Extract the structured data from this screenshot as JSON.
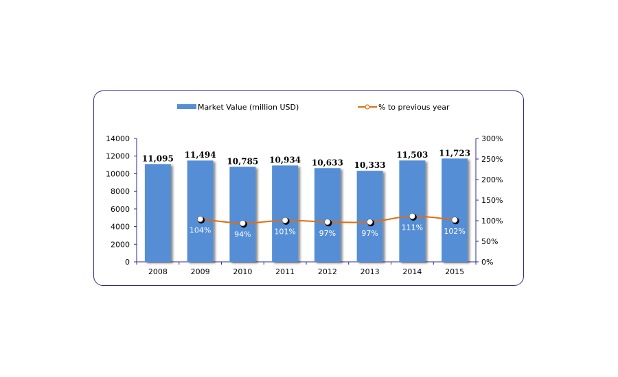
{
  "chart_data": {
    "type": "bar",
    "categories": [
      "2008",
      "2009",
      "2010",
      "2011",
      "2012",
      "2013",
      "2014",
      "2015"
    ],
    "series": [
      {
        "name": "Market Value (million USD)",
        "type": "bar",
        "axis": "left",
        "values": [
          11095,
          11494,
          10785,
          10934,
          10633,
          10333,
          11503,
          11723
        ],
        "labels": [
          "11,095",
          "11,494",
          "10,785",
          "10,934",
          "10,633",
          "10,333",
          "11,503",
          "11,723"
        ]
      },
      {
        "name": "% to previous year",
        "type": "line",
        "axis": "right",
        "values": [
          null,
          104,
          94,
          101,
          97,
          97,
          111,
          102
        ],
        "labels": [
          "",
          "104%",
          "94%",
          "101%",
          "97%",
          "97%",
          "111%",
          "102%"
        ]
      }
    ],
    "y_left": {
      "lim": [
        0,
        14000
      ],
      "ticks": [
        "0",
        "2000",
        "4000",
        "6000",
        "8000",
        "10000",
        "12000",
        "14000"
      ]
    },
    "y_right": {
      "lim": [
        0,
        300
      ],
      "ticks": [
        "0%",
        "50%",
        "100%",
        "150%",
        "200%",
        "250%",
        "300%"
      ]
    },
    "legend": "top",
    "grid": false,
    "colors": {
      "bar": "#558ed5",
      "line": "#e36c0a",
      "marker_fill": "#ffffff",
      "frame": "#2b2b8f",
      "axis": "#2b2b8f"
    }
  }
}
